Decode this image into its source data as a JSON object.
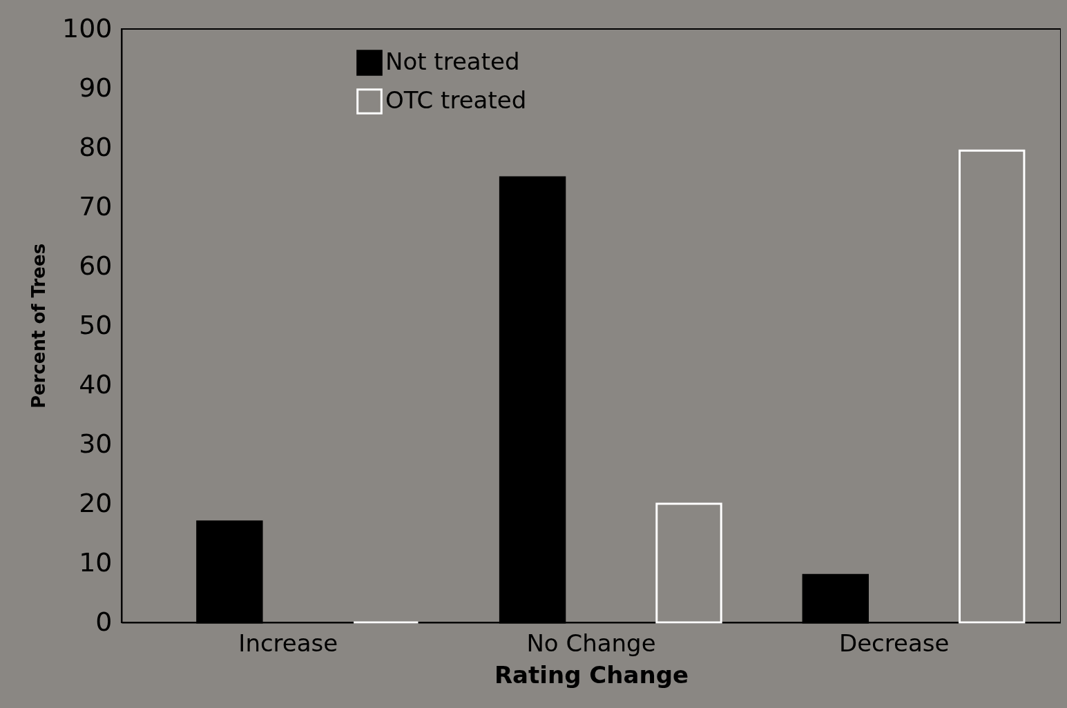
{
  "chart_data": {
    "type": "bar",
    "xlabel": "Rating Change",
    "ylabel": "Percent of Trees",
    "categories": [
      "Increase",
      "No Change",
      "Decrease"
    ],
    "series": [
      {
        "name": "Not treated",
        "color": "#000000",
        "values": [
          17,
          75,
          8
        ]
      },
      {
        "name": "OTC treated",
        "color": "#ffffff",
        "values": [
          0,
          20,
          79.5
        ]
      }
    ],
    "ylim": [
      0,
      100
    ],
    "yticks": [
      0,
      10,
      20,
      30,
      40,
      50,
      60,
      70,
      80,
      90,
      100
    ],
    "grid": false,
    "legend": "top left"
  }
}
